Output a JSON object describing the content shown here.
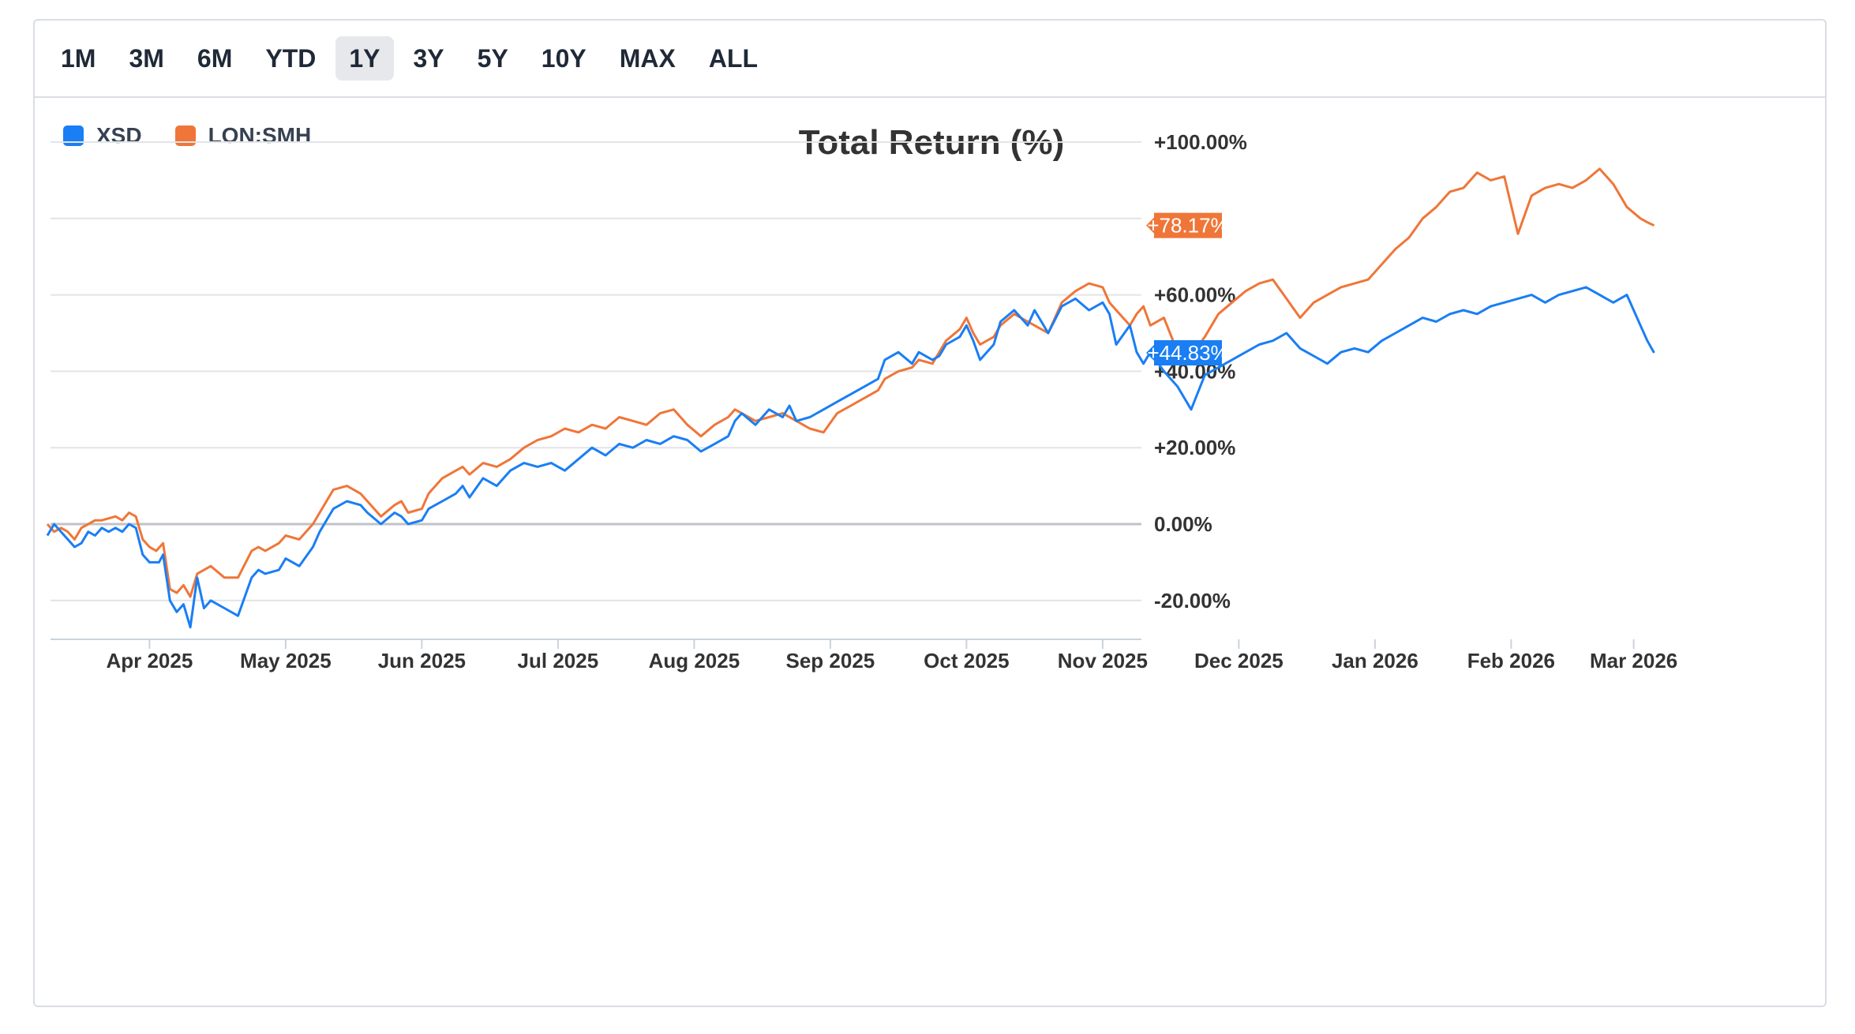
{
  "range_buttons": [
    {
      "label": "1M",
      "active": false
    },
    {
      "label": "3M",
      "active": false
    },
    {
      "label": "6M",
      "active": false
    },
    {
      "label": "YTD",
      "active": false
    },
    {
      "label": "1Y",
      "active": true
    },
    {
      "label": "3Y",
      "active": false
    },
    {
      "label": "5Y",
      "active": false
    },
    {
      "label": "10Y",
      "active": false
    },
    {
      "label": "MAX",
      "active": false
    },
    {
      "label": "ALL",
      "active": false
    }
  ],
  "chart_data": {
    "type": "line",
    "title": "Total Return (%)",
    "ylim": [
      -30,
      100
    ],
    "y_ticks": [
      100,
      60,
      40,
      20,
      0,
      -20
    ],
    "y_tick_labels": [
      "+100.00%",
      "+60.00%",
      "+40.00%",
      "+20.00%",
      "0.00%",
      "-20.00%"
    ],
    "x_tick_labels": [
      "Apr 2025",
      "May 2025",
      "Jun 2025",
      "Jul 2025",
      "Aug 2025",
      "Sep 2025",
      "Oct 2025",
      "Nov 2025",
      "Dec 2025",
      "Jan 2026",
      "Feb 2026",
      "Mar 2026"
    ],
    "x_tick_months": [
      0.75,
      1.75,
      2.75,
      3.75,
      4.75,
      5.75,
      6.75,
      7.75,
      8.75,
      9.75,
      10.75,
      11.65
    ],
    "legend_position": "top-left",
    "series": [
      {
        "name": "XSD",
        "color": "#1a7ef4",
        "last_value_label": "+44.83%",
        "points": [
          [
            0,
            -3
          ],
          [
            0.05,
            0
          ],
          [
            0.1,
            -2
          ],
          [
            0.15,
            -4
          ],
          [
            0.2,
            -6
          ],
          [
            0.25,
            -5
          ],
          [
            0.3,
            -2
          ],
          [
            0.35,
            -3
          ],
          [
            0.4,
            -1
          ],
          [
            0.45,
            -2
          ],
          [
            0.5,
            -1
          ],
          [
            0.55,
            -2
          ],
          [
            0.6,
            0
          ],
          [
            0.65,
            -1
          ],
          [
            0.7,
            -8
          ],
          [
            0.75,
            -10
          ],
          [
            0.82,
            -10
          ],
          [
            0.85,
            -8
          ],
          [
            0.9,
            -20
          ],
          [
            0.95,
            -23
          ],
          [
            1.0,
            -21
          ],
          [
            1.05,
            -27
          ],
          [
            1.1,
            -14
          ],
          [
            1.15,
            -22
          ],
          [
            1.2,
            -20
          ],
          [
            1.3,
            -22
          ],
          [
            1.4,
            -24
          ],
          [
            1.5,
            -14
          ],
          [
            1.55,
            -12
          ],
          [
            1.6,
            -13
          ],
          [
            1.7,
            -12
          ],
          [
            1.75,
            -9
          ],
          [
            1.85,
            -11
          ],
          [
            1.95,
            -6
          ],
          [
            2.0,
            -2
          ],
          [
            2.1,
            4
          ],
          [
            2.2,
            6
          ],
          [
            2.3,
            5
          ],
          [
            2.35,
            3
          ],
          [
            2.45,
            0
          ],
          [
            2.55,
            3
          ],
          [
            2.6,
            2
          ],
          [
            2.65,
            0
          ],
          [
            2.75,
            1
          ],
          [
            2.8,
            4
          ],
          [
            2.9,
            6
          ],
          [
            3.0,
            8
          ],
          [
            3.05,
            10
          ],
          [
            3.1,
            7
          ],
          [
            3.2,
            12
          ],
          [
            3.3,
            10
          ],
          [
            3.4,
            14
          ],
          [
            3.5,
            16
          ],
          [
            3.6,
            15
          ],
          [
            3.7,
            16
          ],
          [
            3.8,
            14
          ],
          [
            3.9,
            17
          ],
          [
            4.0,
            20
          ],
          [
            4.1,
            18
          ],
          [
            4.2,
            21
          ],
          [
            4.3,
            20
          ],
          [
            4.4,
            22
          ],
          [
            4.5,
            21
          ],
          [
            4.6,
            23
          ],
          [
            4.7,
            22
          ],
          [
            4.8,
            19
          ],
          [
            4.9,
            21
          ],
          [
            5.0,
            23
          ],
          [
            5.05,
            27
          ],
          [
            5.1,
            29
          ],
          [
            5.2,
            26
          ],
          [
            5.3,
            30
          ],
          [
            5.4,
            28
          ],
          [
            5.45,
            31
          ],
          [
            5.5,
            27
          ],
          [
            5.6,
            28
          ],
          [
            5.7,
            30
          ],
          [
            5.8,
            32
          ],
          [
            5.9,
            34
          ],
          [
            6.0,
            36
          ],
          [
            6.1,
            38
          ],
          [
            6.15,
            43
          ],
          [
            6.25,
            45
          ],
          [
            6.35,
            42
          ],
          [
            6.4,
            45
          ],
          [
            6.5,
            43
          ],
          [
            6.55,
            44
          ],
          [
            6.6,
            47
          ],
          [
            6.7,
            49
          ],
          [
            6.75,
            52
          ],
          [
            6.8,
            48
          ],
          [
            6.85,
            43
          ],
          [
            6.95,
            47
          ],
          [
            7.0,
            53
          ],
          [
            7.1,
            56
          ],
          [
            7.2,
            52
          ],
          [
            7.25,
            56
          ],
          [
            7.3,
            53
          ],
          [
            7.35,
            50
          ],
          [
            7.45,
            57
          ],
          [
            7.55,
            59
          ],
          [
            7.65,
            56
          ],
          [
            7.75,
            58
          ],
          [
            7.8,
            55
          ],
          [
            7.85,
            47
          ],
          [
            7.95,
            52
          ],
          [
            8.0,
            45
          ],
          [
            8.05,
            42
          ],
          [
            8.1,
            45
          ],
          [
            8.2,
            40
          ],
          [
            8.3,
            36
          ],
          [
            8.4,
            30
          ],
          [
            8.5,
            39
          ],
          [
            8.6,
            41
          ],
          [
            8.7,
            43
          ],
          [
            8.8,
            45
          ],
          [
            8.9,
            47
          ],
          [
            9.0,
            48
          ],
          [
            9.1,
            50
          ],
          [
            9.2,
            46
          ],
          [
            9.3,
            44
          ],
          [
            9.4,
            42
          ],
          [
            9.5,
            45
          ],
          [
            9.6,
            46
          ],
          [
            9.7,
            45
          ],
          [
            9.8,
            48
          ],
          [
            9.9,
            50
          ],
          [
            10.0,
            52
          ],
          [
            10.1,
            54
          ],
          [
            10.2,
            53
          ],
          [
            10.3,
            55
          ],
          [
            10.4,
            56
          ],
          [
            10.5,
            55
          ],
          [
            10.6,
            57
          ],
          [
            10.7,
            58
          ],
          [
            10.8,
            59
          ],
          [
            10.9,
            60
          ],
          [
            11.0,
            58
          ],
          [
            11.1,
            60
          ],
          [
            11.2,
            61
          ],
          [
            11.3,
            62
          ],
          [
            11.4,
            60
          ],
          [
            11.5,
            58
          ],
          [
            11.6,
            60
          ],
          [
            11.7,
            52
          ],
          [
            11.75,
            48
          ],
          [
            11.8,
            44.83
          ]
        ]
      },
      {
        "name": "LON:SMH",
        "color": "#ef7638",
        "last_value_label": "+78.17%",
        "points": [
          [
            0,
            0
          ],
          [
            0.05,
            -2
          ],
          [
            0.1,
            -1
          ],
          [
            0.15,
            -2
          ],
          [
            0.2,
            -4
          ],
          [
            0.25,
            -1
          ],
          [
            0.3,
            0
          ],
          [
            0.35,
            1
          ],
          [
            0.4,
            1
          ],
          [
            0.5,
            2
          ],
          [
            0.55,
            1
          ],
          [
            0.6,
            3
          ],
          [
            0.65,
            2
          ],
          [
            0.7,
            -4
          ],
          [
            0.75,
            -6
          ],
          [
            0.8,
            -7
          ],
          [
            0.85,
            -5
          ],
          [
            0.9,
            -17
          ],
          [
            0.95,
            -18
          ],
          [
            1.0,
            -16
          ],
          [
            1.05,
            -19
          ],
          [
            1.1,
            -13
          ],
          [
            1.15,
            -12
          ],
          [
            1.2,
            -11
          ],
          [
            1.3,
            -14
          ],
          [
            1.4,
            -14
          ],
          [
            1.5,
            -7
          ],
          [
            1.55,
            -6
          ],
          [
            1.6,
            -7
          ],
          [
            1.7,
            -5
          ],
          [
            1.75,
            -3
          ],
          [
            1.85,
            -4
          ],
          [
            1.95,
            0
          ],
          [
            2.0,
            3
          ],
          [
            2.1,
            9
          ],
          [
            2.2,
            10
          ],
          [
            2.3,
            8
          ],
          [
            2.35,
            6
          ],
          [
            2.45,
            2
          ],
          [
            2.55,
            5
          ],
          [
            2.6,
            6
          ],
          [
            2.65,
            3
          ],
          [
            2.75,
            4
          ],
          [
            2.8,
            8
          ],
          [
            2.9,
            12
          ],
          [
            3.0,
            14
          ],
          [
            3.05,
            15
          ],
          [
            3.1,
            13
          ],
          [
            3.2,
            16
          ],
          [
            3.3,
            15
          ],
          [
            3.4,
            17
          ],
          [
            3.5,
            20
          ],
          [
            3.6,
            22
          ],
          [
            3.7,
            23
          ],
          [
            3.8,
            25
          ],
          [
            3.9,
            24
          ],
          [
            4.0,
            26
          ],
          [
            4.1,
            25
          ],
          [
            4.2,
            28
          ],
          [
            4.3,
            27
          ],
          [
            4.4,
            26
          ],
          [
            4.5,
            29
          ],
          [
            4.6,
            30
          ],
          [
            4.7,
            26
          ],
          [
            4.8,
            23
          ],
          [
            4.9,
            26
          ],
          [
            5.0,
            28
          ],
          [
            5.05,
            30
          ],
          [
            5.1,
            29
          ],
          [
            5.2,
            27
          ],
          [
            5.3,
            28
          ],
          [
            5.4,
            29
          ],
          [
            5.5,
            27
          ],
          [
            5.6,
            25
          ],
          [
            5.7,
            24
          ],
          [
            5.8,
            29
          ],
          [
            5.9,
            31
          ],
          [
            6.0,
            33
          ],
          [
            6.1,
            35
          ],
          [
            6.15,
            38
          ],
          [
            6.25,
            40
          ],
          [
            6.35,
            41
          ],
          [
            6.4,
            43
          ],
          [
            6.5,
            42
          ],
          [
            6.55,
            45
          ],
          [
            6.6,
            48
          ],
          [
            6.7,
            51
          ],
          [
            6.75,
            54
          ],
          [
            6.8,
            50
          ],
          [
            6.85,
            47
          ],
          [
            6.95,
            49
          ],
          [
            7.0,
            52
          ],
          [
            7.1,
            55
          ],
          [
            7.2,
            53
          ],
          [
            7.25,
            52
          ],
          [
            7.3,
            51
          ],
          [
            7.35,
            50
          ],
          [
            7.45,
            58
          ],
          [
            7.55,
            61
          ],
          [
            7.65,
            63
          ],
          [
            7.75,
            62
          ],
          [
            7.8,
            58
          ],
          [
            7.85,
            56
          ],
          [
            7.95,
            52
          ],
          [
            8.0,
            55
          ],
          [
            8.05,
            57
          ],
          [
            8.1,
            52
          ],
          [
            8.2,
            54
          ],
          [
            8.3,
            45
          ],
          [
            8.4,
            44
          ],
          [
            8.5,
            49
          ],
          [
            8.6,
            55
          ],
          [
            8.7,
            58
          ],
          [
            8.8,
            61
          ],
          [
            8.9,
            63
          ],
          [
            9.0,
            64
          ],
          [
            9.1,
            59
          ],
          [
            9.2,
            54
          ],
          [
            9.3,
            58
          ],
          [
            9.4,
            60
          ],
          [
            9.5,
            62
          ],
          [
            9.6,
            63
          ],
          [
            9.7,
            64
          ],
          [
            9.8,
            68
          ],
          [
            9.9,
            72
          ],
          [
            10.0,
            75
          ],
          [
            10.1,
            80
          ],
          [
            10.2,
            83
          ],
          [
            10.3,
            87
          ],
          [
            10.4,
            88
          ],
          [
            10.5,
            92
          ],
          [
            10.6,
            90
          ],
          [
            10.7,
            91
          ],
          [
            10.8,
            76
          ],
          [
            10.9,
            86
          ],
          [
            11.0,
            88
          ],
          [
            11.1,
            89
          ],
          [
            11.2,
            88
          ],
          [
            11.3,
            90
          ],
          [
            11.4,
            93
          ],
          [
            11.5,
            89
          ],
          [
            11.6,
            83
          ],
          [
            11.7,
            80
          ],
          [
            11.75,
            79
          ],
          [
            11.8,
            78.17
          ]
        ]
      }
    ]
  }
}
